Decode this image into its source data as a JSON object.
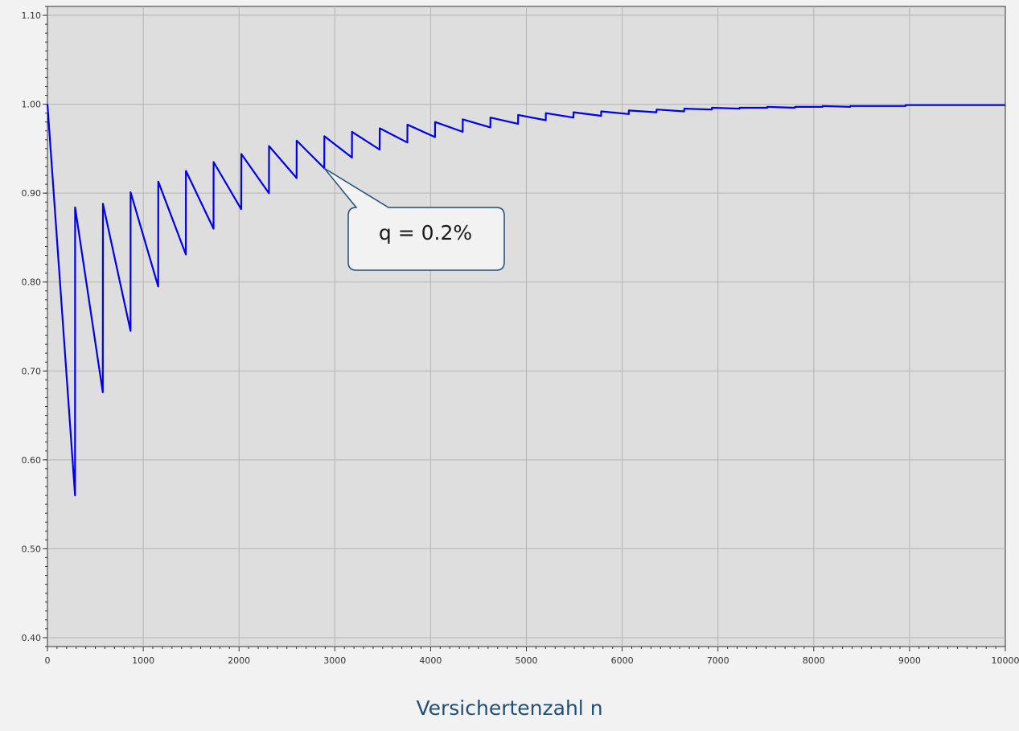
{
  "chart_data": {
    "type": "line",
    "title": "",
    "xlabel": "Versichertenzahl  n",
    "ylabel": "",
    "xlim": [
      0,
      10000
    ],
    "ylim": [
      0.39,
      1.11
    ],
    "grid": true,
    "x_ticks": [
      0,
      1000,
      2000,
      3000,
      4000,
      5000,
      6000,
      7000,
      8000,
      9000,
      10000
    ],
    "y_ticks": [
      0.4,
      0.5,
      0.6,
      0.7,
      0.8,
      0.9,
      1.0,
      1.1
    ],
    "y_tick_labels": [
      "0.40",
      "0.50",
      "0.60",
      "0.70",
      "0.80",
      "0.90",
      "1.00",
      "1.10"
    ],
    "annotation": {
      "text": "q = 0.2%",
      "points_to": {
        "x": 2890,
        "y": 0.928
      }
    },
    "series": [
      {
        "color": "#0000ee",
        "points": [
          [
            0,
            1.0
          ],
          [
            288,
            0.56
          ],
          [
            289,
            0.884
          ],
          [
            578,
            0.676
          ],
          [
            579,
            0.888
          ],
          [
            867,
            0.745
          ],
          [
            868,
            0.901
          ],
          [
            1156,
            0.795
          ],
          [
            1157,
            0.913
          ],
          [
            1445,
            0.831
          ],
          [
            1446,
            0.925
          ],
          [
            1734,
            0.86
          ],
          [
            1735,
            0.935
          ],
          [
            2023,
            0.882
          ],
          [
            2024,
            0.944
          ],
          [
            2312,
            0.9
          ],
          [
            2313,
            0.953
          ],
          [
            2601,
            0.917
          ],
          [
            2602,
            0.959
          ],
          [
            2890,
            0.928
          ],
          [
            2891,
            0.964
          ],
          [
            3179,
            0.94
          ],
          [
            3180,
            0.969
          ],
          [
            3468,
            0.949
          ],
          [
            3469,
            0.973
          ],
          [
            3757,
            0.957
          ],
          [
            3758,
            0.977
          ],
          [
            4046,
            0.963
          ],
          [
            4047,
            0.98
          ],
          [
            4335,
            0.969
          ],
          [
            4336,
            0.983
          ],
          [
            4624,
            0.974
          ],
          [
            4625,
            0.985
          ],
          [
            4913,
            0.978
          ],
          [
            4914,
            0.988
          ],
          [
            5202,
            0.982
          ],
          [
            5203,
            0.99
          ],
          [
            5491,
            0.985
          ],
          [
            5492,
            0.991
          ],
          [
            5780,
            0.987
          ],
          [
            5781,
            0.992
          ],
          [
            6069,
            0.989
          ],
          [
            6070,
            0.993
          ],
          [
            6358,
            0.991
          ],
          [
            6359,
            0.994
          ],
          [
            6647,
            0.992
          ],
          [
            6648,
            0.995
          ],
          [
            6936,
            0.994
          ],
          [
            6937,
            0.996
          ],
          [
            7225,
            0.995
          ],
          [
            7226,
            0.996
          ],
          [
            7514,
            0.996
          ],
          [
            7515,
            0.997
          ],
          [
            7803,
            0.996
          ],
          [
            7804,
            0.997
          ],
          [
            8092,
            0.997
          ],
          [
            8093,
            0.998
          ],
          [
            8381,
            0.997
          ],
          [
            8382,
            0.998
          ],
          [
            8670,
            0.998
          ],
          [
            8671,
            0.998
          ],
          [
            8959,
            0.998
          ],
          [
            8960,
            0.999
          ],
          [
            9248,
            0.999
          ],
          [
            9249,
            0.999
          ],
          [
            9537,
            0.999
          ],
          [
            9538,
            0.999
          ],
          [
            10000,
            0.999
          ]
        ]
      }
    ]
  }
}
